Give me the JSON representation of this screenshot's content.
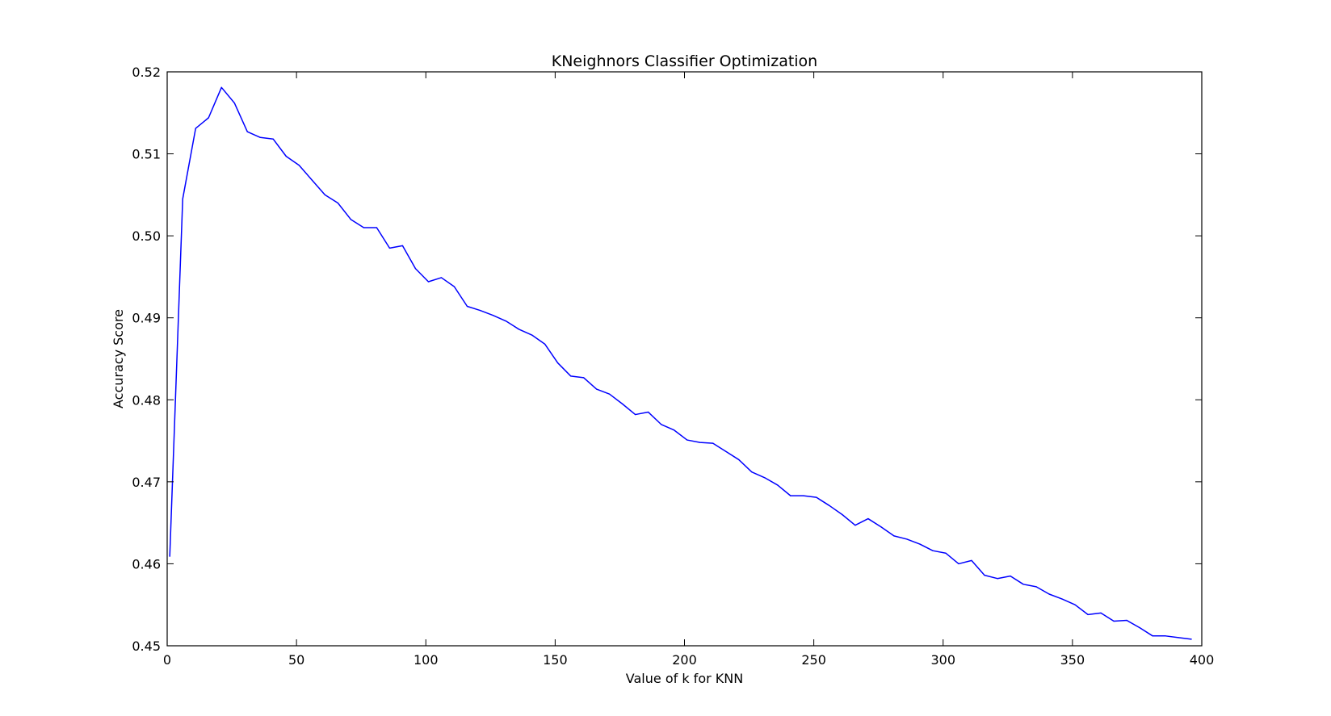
{
  "chart_data": {
    "type": "line",
    "title": "KNeighnors Classifier Optimization",
    "xlabel": "Value of k for KNN",
    "ylabel": "Accuracy Score",
    "xlim": [
      0,
      400
    ],
    "ylim": [
      0.45,
      0.52
    ],
    "xticks": [
      0,
      50,
      100,
      150,
      200,
      250,
      300,
      350,
      400
    ],
    "xtick_labels": [
      "0",
      "50",
      "100",
      "150",
      "200",
      "250",
      "300",
      "350",
      "400"
    ],
    "yticks": [
      0.45,
      0.46,
      0.47,
      0.48,
      0.49,
      0.5,
      0.51,
      0.52
    ],
    "ytick_labels": [
      "0.45",
      "0.46",
      "0.47",
      "0.48",
      "0.49",
      "0.50",
      "0.51",
      "0.52"
    ],
    "grid": false,
    "line_color": "#0000ff",
    "series": [
      {
        "x": [
          1,
          6,
          11,
          16,
          21,
          26,
          31,
          36,
          41,
          46,
          51,
          56,
          61,
          66,
          71,
          76,
          81,
          86,
          91,
          96,
          101,
          106,
          111,
          116,
          121,
          126,
          131,
          136,
          141,
          146,
          151,
          156,
          161,
          166,
          171,
          176,
          181,
          186,
          191,
          196,
          201,
          206,
          211,
          216,
          221,
          226,
          231,
          236,
          241,
          246,
          251,
          256,
          261,
          266,
          271,
          276,
          281,
          286,
          291,
          296,
          301,
          306,
          311,
          316,
          321,
          326,
          331,
          336,
          341,
          346,
          351,
          356,
          361,
          366,
          371,
          376,
          381,
          386,
          391,
          396
        ],
        "y": [
          0.4609,
          0.5045,
          0.5131,
          0.5144,
          0.5181,
          0.5162,
          0.5127,
          0.512,
          0.5118,
          0.5097,
          0.5086,
          0.5068,
          0.505,
          0.504,
          0.502,
          0.501,
          0.501,
          0.4985,
          0.4988,
          0.496,
          0.4944,
          0.4949,
          0.4938,
          0.4914,
          0.4909,
          0.4903,
          0.4896,
          0.4886,
          0.4879,
          0.4868,
          0.4845,
          0.4829,
          0.4827,
          0.4813,
          0.4807,
          0.4795,
          0.4782,
          0.4785,
          0.477,
          0.4763,
          0.4751,
          0.4748,
          0.4747,
          0.4737,
          0.4727,
          0.4712,
          0.4705,
          0.4696,
          0.4683,
          0.4683,
          0.4681,
          0.4671,
          0.466,
          0.4647,
          0.4655,
          0.4645,
          0.4634,
          0.463,
          0.4624,
          0.4616,
          0.4613,
          0.46,
          0.4604,
          0.4586,
          0.4582,
          0.4585,
          0.4575,
          0.4572,
          0.4563,
          0.4557,
          0.455,
          0.4538,
          0.454,
          0.453,
          0.4531,
          0.4522,
          0.4512,
          0.4512,
          0.451,
          0.4508
        ]
      }
    ]
  }
}
